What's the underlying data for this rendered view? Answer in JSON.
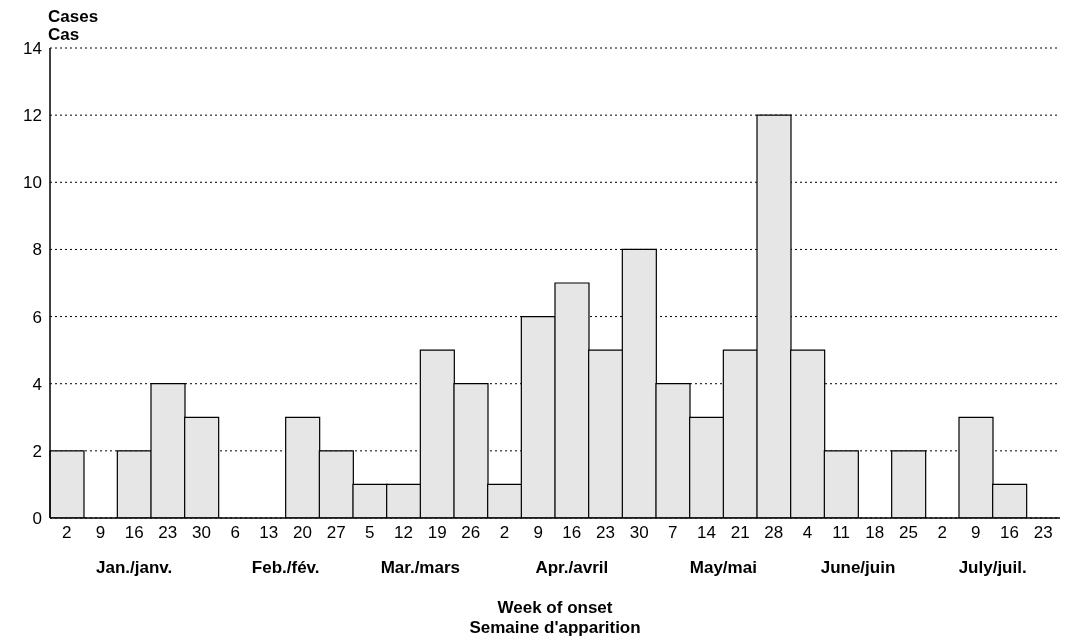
{
  "chart_data": {
    "type": "bar",
    "ylabel": "Cases\nCas",
    "xlabel": "Week of onset\nSemaine d'apparition",
    "categories": [
      "2",
      "9",
      "16",
      "23",
      "30",
      "6",
      "13",
      "20",
      "27",
      "5",
      "12",
      "19",
      "26",
      "2",
      "9",
      "16",
      "23",
      "30",
      "7",
      "14",
      "21",
      "28",
      "4",
      "11",
      "18",
      "25",
      "2",
      "9",
      "16",
      "23"
    ],
    "values": [
      2,
      0,
      2,
      4,
      3,
      0,
      0,
      3,
      2,
      1,
      1,
      5,
      4,
      1,
      6,
      7,
      5,
      8,
      4,
      3,
      5,
      12,
      5,
      2,
      0,
      2,
      0,
      3,
      1,
      0
    ],
    "color": "#e6e6e6",
    "ylim": [
      0,
      14
    ],
    "yticks": [
      0,
      2,
      4,
      6,
      8,
      10,
      12,
      14
    ],
    "grid": "y",
    "annotations": [
      "Jan./janv.",
      "Feb./fév.",
      "Mar./mars",
      "Apr./avril",
      "May/mai",
      "June/juin",
      "July/juil."
    ]
  }
}
